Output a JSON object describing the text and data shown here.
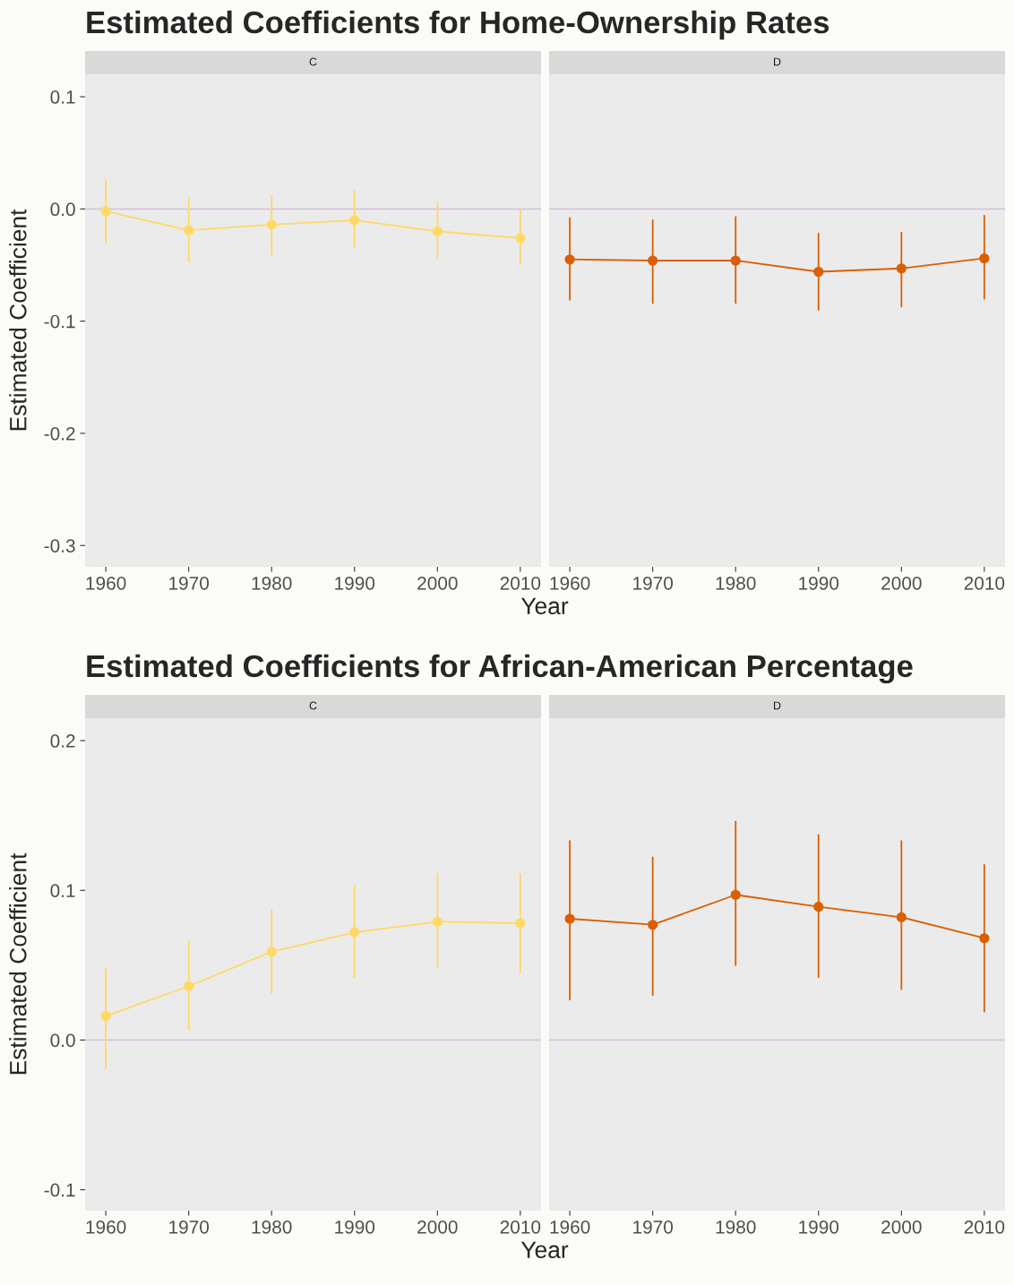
{
  "chart_data": [
    {
      "type": "line",
      "title": "Estimated Coefficients for Home-Ownership Rates",
      "subtitle": "C",
      "ylabel": "Estimated Coefficient",
      "x": [
        1960,
        1970,
        1980,
        1990,
        2000,
        2010
      ],
      "xlim": [
        1957.5,
        2012.5
      ],
      "xticks": [
        1960,
        1970,
        1980,
        1990,
        2000,
        2010
      ],
      "ylim": [
        -0.319,
        0.12
      ],
      "yticks": [
        {
          "value": -0.3,
          "label": "-0.3"
        },
        {
          "value": -0.2,
          "label": "-0.2"
        },
        {
          "value": -0.1,
          "label": "-0.1"
        },
        {
          "value": 0,
          "label": "0.0"
        },
        {
          "value": 0.1,
          "label": "0.1"
        }
      ],
      "grid": false,
      "marker": "circle",
      "line_style": "solid",
      "ref_lines": [
        {
          "axis": "y",
          "value": 0,
          "color": "#d7c4dc"
        }
      ],
      "series": [
        {
          "color": "#ffd966",
          "values": [
            -0.002,
            -0.019,
            -0.014,
            -0.01,
            -0.02,
            -0.026
          ],
          "errors": [
            [
              -0.03,
              0.026
            ],
            [
              -0.047,
              0.01
            ],
            [
              -0.041,
              0.012
            ],
            [
              -0.034,
              0.016
            ],
            [
              -0.044,
              0.006
            ],
            [
              -0.049,
              -0.001
            ]
          ]
        }
      ]
    },
    {
      "type": "line",
      "subtitle": "D",
      "xlabel": "Year",
      "x": [
        1960,
        1970,
        1980,
        1990,
        2000,
        2010
      ],
      "xlim": [
        1957.5,
        2012.5
      ],
      "xticks": [
        1960,
        1970,
        1980,
        1990,
        2000,
        2010
      ],
      "ylim": [
        -0.319,
        0.12
      ],
      "tick_labels": "x",
      "grid": false,
      "marker": "circle",
      "line_style": "solid",
      "ref_lines": [
        {
          "axis": "y",
          "value": 0,
          "color": "#d7c4dc"
        }
      ],
      "series": [
        {
          "color": "#d95f02",
          "values": [
            -0.045,
            -0.046,
            -0.046,
            -0.056,
            -0.053,
            -0.044
          ],
          "errors": [
            [
              -0.081,
              -0.008
            ],
            [
              -0.084,
              -0.01
            ],
            [
              -0.084,
              -0.007
            ],
            [
              -0.09,
              -0.022
            ],
            [
              -0.087,
              -0.021
            ],
            [
              -0.08,
              -0.006
            ]
          ]
        }
      ]
    },
    {
      "type": "line",
      "title": "Estimated Coefficients for African-American Percentage",
      "subtitle": "C",
      "ylabel": "Estimated Coefficient",
      "x": [
        1960,
        1970,
        1980,
        1990,
        2000,
        2010
      ],
      "xlim": [
        1957.5,
        2012.5
      ],
      "xticks": [
        1960,
        1970,
        1980,
        1990,
        2000,
        2010
      ],
      "ylim": [
        -0.114,
        0.215
      ],
      "yticks": [
        {
          "value": -0.1,
          "label": "-0.1"
        },
        {
          "value": 0,
          "label": "0.0"
        },
        {
          "value": 0.1,
          "label": "0.1"
        },
        {
          "value": 0.2,
          "label": "0.2"
        }
      ],
      "grid": false,
      "marker": "circle",
      "line_style": "solid",
      "ref_lines": [
        {
          "axis": "y",
          "value": 0,
          "color": "#d7c4dc"
        }
      ],
      "series": [
        {
          "color": "#ffd966",
          "values": [
            0.016,
            0.036,
            0.059,
            0.072,
            0.079,
            0.078
          ],
          "errors": [
            [
              -0.019,
              0.048
            ],
            [
              0.007,
              0.066
            ],
            [
              0.031,
              0.087
            ],
            [
              0.042,
              0.103
            ],
            [
              0.048,
              0.111
            ],
            [
              0.045,
              0.111
            ]
          ]
        }
      ]
    },
    {
      "type": "line",
      "subtitle": "D",
      "xlabel": "Year",
      "x": [
        1960,
        1970,
        1980,
        1990,
        2000,
        2010
      ],
      "xlim": [
        1957.5,
        2012.5
      ],
      "xticks": [
        1960,
        1970,
        1980,
        1990,
        2000,
        2010
      ],
      "ylim": [
        -0.114,
        0.215
      ],
      "tick_labels": "x",
      "grid": false,
      "marker": "circle",
      "line_style": "solid",
      "ref_lines": [
        {
          "axis": "y",
          "value": 0,
          "color": "#d7c4dc"
        }
      ],
      "series": [
        {
          "color": "#d95f02",
          "values": [
            0.081,
            0.077,
            0.097,
            0.089,
            0.082,
            0.068
          ],
          "errors": [
            [
              0.027,
              0.133
            ],
            [
              0.03,
              0.122
            ],
            [
              0.05,
              0.146
            ],
            [
              0.042,
              0.137
            ],
            [
              0.034,
              0.133
            ],
            [
              0.019,
              0.117
            ]
          ]
        }
      ]
    }
  ]
}
